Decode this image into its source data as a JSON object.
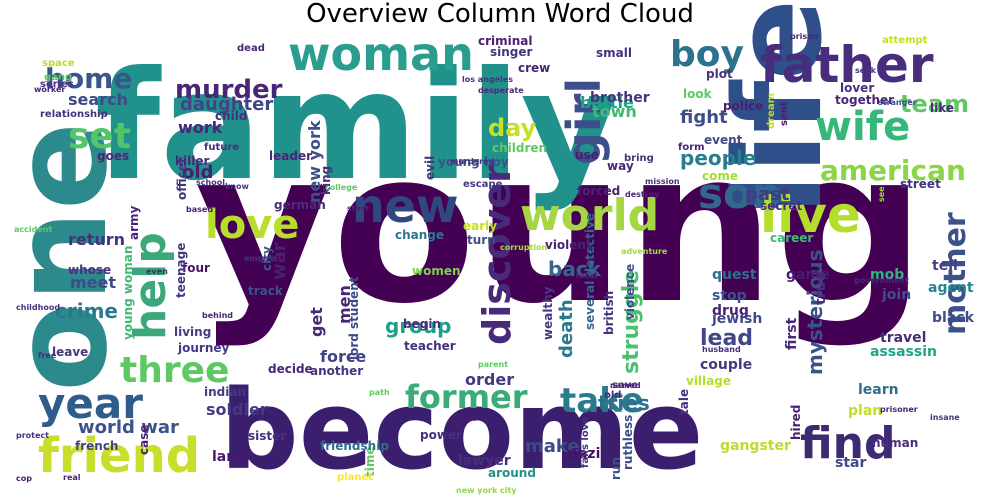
{
  "chart_data": {
    "type": "wordcloud",
    "title": "Overview Column Word Cloud",
    "colormap": "viridis",
    "words": [
      {
        "text": "young",
        "weight": 1.0,
        "color": "#440154"
      },
      {
        "text": "family",
        "weight": 0.92,
        "color": "#21918c"
      },
      {
        "text": "become",
        "weight": 0.62,
        "color": "#3b1f6e"
      },
      {
        "text": "one",
        "weight": 0.5,
        "color": "#2c8a8c"
      },
      {
        "text": "life",
        "weight": 0.45,
        "color": "#2f4f8a"
      },
      {
        "text": "live",
        "weight": 0.3,
        "color": "#b5de2b"
      },
      {
        "text": "father",
        "weight": 0.29,
        "color": "#472d7b"
      },
      {
        "text": "woman",
        "weight": 0.27,
        "color": "#2a9d8f"
      },
      {
        "text": "friend",
        "weight": 0.28,
        "color": "#c9de2b"
      },
      {
        "text": "find",
        "weight": 0.25,
        "color": "#3f2a72"
      },
      {
        "text": "world",
        "weight": 0.24,
        "color": "#a5d743"
      },
      {
        "text": "new",
        "weight": 0.24,
        "color": "#31487f"
      },
      {
        "text": "girl",
        "weight": 0.23,
        "color": "#3c4f8a"
      },
      {
        "text": "wife",
        "weight": 0.22,
        "color": "#35b779"
      },
      {
        "text": "help",
        "weight": 0.22,
        "color": "#3ba87a"
      },
      {
        "text": "love",
        "weight": 0.21,
        "color": "#b8de29"
      },
      {
        "text": "son",
        "weight": 0.19,
        "color": "#31688e"
      },
      {
        "text": "year",
        "weight": 0.19,
        "color": "#2f5c8a"
      },
      {
        "text": "set",
        "weight": 0.18,
        "color": "#52c569"
      },
      {
        "text": "three",
        "weight": 0.17,
        "color": "#5ec962"
      },
      {
        "text": "former",
        "weight": 0.17,
        "color": "#3aab79"
      },
      {
        "text": "take",
        "weight": 0.16,
        "color": "#2b7b8e"
      },
      {
        "text": "discover",
        "weight": 0.15,
        "color": "#472a7a"
      },
      {
        "text": "boy",
        "weight": 0.15,
        "color": "#2c728e"
      },
      {
        "text": "home",
        "weight": 0.12,
        "color": "#3a548c"
      },
      {
        "text": "american",
        "weight": 0.12,
        "color": "#8bd646"
      },
      {
        "text": "mother",
        "weight": 0.12,
        "color": "#3c508b"
      },
      {
        "text": "team",
        "weight": 0.11,
        "color": "#5ec962"
      },
      {
        "text": "murder",
        "weight": 0.11,
        "color": "#482576"
      },
      {
        "text": "day",
        "weight": 0.11,
        "color": "#c7e020"
      },
      {
        "text": "struggle",
        "weight": 0.09,
        "color": "#4ac16d"
      },
      {
        "text": "people",
        "weight": 0.09,
        "color": "#277f8e"
      },
      {
        "text": "fight",
        "weight": 0.08,
        "color": "#3e4c8a"
      },
      {
        "text": "daughter",
        "weight": 0.08,
        "color": "#414487"
      },
      {
        "text": "crime",
        "weight": 0.08,
        "color": "#2a788e"
      },
      {
        "text": "group",
        "weight": 0.08,
        "color": "#1f9e89"
      },
      {
        "text": "lead",
        "weight": 0.08,
        "color": "#404688"
      },
      {
        "text": "past",
        "weight": 0.08,
        "color": "#443983"
      },
      {
        "text": "mysterious",
        "weight": 0.08,
        "color": "#3b528b"
      },
      {
        "text": "tries",
        "weight": 0.08,
        "color": "#2d708e"
      },
      {
        "text": "back",
        "weight": 0.08,
        "color": "#31688e"
      },
      {
        "text": "old",
        "weight": 0.08,
        "color": "#481f70"
      },
      {
        "text": "search",
        "weight": 0.07,
        "color": "#3e4a89"
      },
      {
        "text": "death",
        "weight": 0.07,
        "color": "#2a788e"
      },
      {
        "text": "battle",
        "weight": 0.07,
        "color": "#1fa088"
      },
      {
        "text": "work",
        "weight": 0.07,
        "color": "#482878"
      },
      {
        "text": "world war",
        "weight": 0.07,
        "color": "#3b528b"
      },
      {
        "text": "return",
        "weight": 0.07,
        "color": "#46307e"
      },
      {
        "text": "meet",
        "weight": 0.07,
        "color": "#3e4a89"
      },
      {
        "text": "war",
        "weight": 0.07,
        "color": "#482173"
      },
      {
        "text": "make",
        "weight": 0.06,
        "color": "#3e4989"
      },
      {
        "text": "soldier",
        "weight": 0.06,
        "color": "#443a83"
      },
      {
        "text": "force",
        "weight": 0.06,
        "color": "#404387"
      },
      {
        "text": "order",
        "weight": 0.06,
        "color": "#453781"
      },
      {
        "text": "men",
        "weight": 0.06,
        "color": "#482475"
      },
      {
        "text": "get",
        "weight": 0.06,
        "color": "#472c7a"
      },
      {
        "text": "new york",
        "weight": 0.06,
        "color": "#3b528b"
      },
      {
        "text": "town",
        "weight": 0.06,
        "color": "#3fbc73"
      },
      {
        "text": "brother",
        "weight": 0.05,
        "color": "#46337e"
      },
      {
        "text": "plan",
        "weight": 0.05,
        "color": "#c2df23"
      },
      {
        "text": "learn",
        "weight": 0.05,
        "color": "#2e6f8e"
      },
      {
        "text": "assassin",
        "weight": 0.05,
        "color": "#20a386"
      },
      {
        "text": "travel",
        "weight": 0.05,
        "color": "#472c7a"
      },
      {
        "text": "join",
        "weight": 0.05,
        "color": "#3b528b"
      },
      {
        "text": "couple",
        "weight": 0.05,
        "color": "#443983"
      },
      {
        "text": "mob",
        "weight": 0.05,
        "color": "#2fb47c"
      },
      {
        "text": "quest",
        "weight": 0.05,
        "color": "#2d708e"
      },
      {
        "text": "jewish",
        "weight": 0.05,
        "color": "#3e4989"
      },
      {
        "text": "drug",
        "weight": 0.05,
        "color": "#482576"
      },
      {
        "text": "stop",
        "weight": 0.05,
        "color": "#3b528b"
      },
      {
        "text": "game",
        "weight": 0.05,
        "color": "#481d6f"
      },
      {
        "text": "black",
        "weight": 0.05,
        "color": "#3e4a89"
      },
      {
        "text": "agent",
        "weight": 0.05,
        "color": "#25858e"
      },
      {
        "text": "tell",
        "weight": 0.05,
        "color": "#433e85"
      },
      {
        "text": "true",
        "weight": 0.05,
        "color": "#46337e"
      },
      {
        "text": "first",
        "weight": 0.05,
        "color": "#482878"
      },
      {
        "text": "human",
        "weight": 0.05,
        "color": "#472d7b"
      },
      {
        "text": "gangster",
        "weight": 0.05,
        "color": "#b8de29"
      },
      {
        "text": "star",
        "weight": 0.05,
        "color": "#3e4989"
      },
      {
        "text": "nazi",
        "weight": 0.05,
        "color": "#471063"
      },
      {
        "text": "lawyer",
        "weight": 0.05,
        "color": "#46307e"
      },
      {
        "text": "power",
        "weight": 0.05,
        "color": "#472f7d"
      },
      {
        "text": "around",
        "weight": 0.05,
        "color": "#21918c"
      },
      {
        "text": "sister",
        "weight": 0.05,
        "color": "#46337e"
      },
      {
        "text": "land",
        "weight": 0.05,
        "color": "#481a6c"
      },
      {
        "text": "french",
        "weight": 0.04,
        "color": "#414487"
      },
      {
        "text": "indian",
        "weight": 0.04,
        "color": "#443983"
      },
      {
        "text": "decide",
        "weight": 0.04,
        "color": "#482677"
      },
      {
        "text": "another",
        "weight": 0.04,
        "color": "#46327e"
      },
      {
        "text": "journey",
        "weight": 0.04,
        "color": "#443983"
      },
      {
        "text": "living",
        "weight": 0.04,
        "color": "#433e85"
      },
      {
        "text": "leave",
        "weight": 0.04,
        "color": "#453882"
      },
      {
        "text": "whose",
        "weight": 0.04,
        "color": "#46327e"
      },
      {
        "text": "four",
        "weight": 0.04,
        "color": "#481467"
      },
      {
        "text": "track",
        "weight": 0.04,
        "color": "#3b528b"
      },
      {
        "text": "women",
        "weight": 0.04,
        "color": "#7ad151"
      },
      {
        "text": "begin",
        "weight": 0.04,
        "color": "#472d7b"
      },
      {
        "text": "teacher",
        "weight": 0.04,
        "color": "#46307e"
      },
      {
        "text": "time",
        "weight": 0.04,
        "color": "#5ec962"
      },
      {
        "text": "friendship",
        "weight": 0.04,
        "color": "#2e6e8e"
      },
      {
        "text": "run",
        "weight": 0.04,
        "color": "#3b528b"
      },
      {
        "text": "ruthless",
        "weight": 0.04,
        "color": "#3c4f8a"
      },
      {
        "text": "hired",
        "weight": 0.04,
        "color": "#481f70"
      },
      {
        "text": "village",
        "weight": 0.04,
        "color": "#b5de2b"
      },
      {
        "text": "career",
        "weight": 0.04,
        "color": "#3dbc74"
      },
      {
        "text": "british",
        "weight": 0.04,
        "color": "#46307e"
      },
      {
        "text": "violence",
        "weight": 0.04,
        "color": "#3e4a89"
      },
      {
        "text": "several detective",
        "weight": 0.04,
        "color": "#31688e"
      },
      {
        "text": "wealthy",
        "weight": 0.04,
        "color": "#443983"
      },
      {
        "text": "change",
        "weight": 0.04,
        "color": "#2a788e"
      },
      {
        "text": "violent",
        "weight": 0.04,
        "color": "#482475"
      },
      {
        "text": "turn",
        "weight": 0.04,
        "color": "#3e4a89"
      },
      {
        "text": "early",
        "weight": 0.04,
        "color": "#c2df23"
      },
      {
        "text": "lord student",
        "weight": 0.04,
        "color": "#3e4989"
      },
      {
        "text": "young woman",
        "weight": 0.04,
        "color": "#3fbc73"
      },
      {
        "text": "teenage",
        "weight": 0.04,
        "color": "#46337e"
      },
      {
        "text": "city",
        "weight": 0.04,
        "color": "#38588c"
      },
      {
        "text": "army",
        "weight": 0.04,
        "color": "#482475"
      },
      {
        "text": "german",
        "weight": 0.04,
        "color": "#472d7b"
      },
      {
        "text": "officer",
        "weight": 0.04,
        "color": "#46337e"
      },
      {
        "text": "goes",
        "weight": 0.04,
        "color": "#482677"
      },
      {
        "text": "future",
        "weight": 0.04,
        "color": "#46307e"
      },
      {
        "text": "killer",
        "weight": 0.04,
        "color": "#482878"
      },
      {
        "text": "child",
        "weight": 0.04,
        "color": "#46307e"
      },
      {
        "text": "leader",
        "weight": 0.04,
        "color": "#482677"
      },
      {
        "text": "king",
        "weight": 0.04,
        "color": "#46337e"
      },
      {
        "text": "evil",
        "weight": 0.04,
        "color": "#46327e"
      },
      {
        "text": "young boy",
        "weight": 0.04,
        "color": "#3b528b"
      },
      {
        "text": "children",
        "weight": 0.04,
        "color": "#5ec962"
      },
      {
        "text": "escape",
        "weight": 0.04,
        "color": "#46337e"
      },
      {
        "text": "forced",
        "weight": 0.04,
        "color": "#482475"
      },
      {
        "text": "use",
        "weight": 0.04,
        "color": "#481d6f"
      },
      {
        "text": "way",
        "weight": 0.04,
        "color": "#482878"
      },
      {
        "text": "bring",
        "weight": 0.04,
        "color": "#46327e"
      },
      {
        "text": "form",
        "weight": 0.04,
        "color": "#482677"
      },
      {
        "text": "event",
        "weight": 0.03,
        "color": "#3e4a89"
      },
      {
        "text": "come",
        "weight": 0.03,
        "color": "#a5db36"
      },
      {
        "text": "secret",
        "weight": 0.03,
        "color": "#46307e"
      },
      {
        "text": "street",
        "weight": 0.03,
        "color": "#46337e"
      },
      {
        "text": "like",
        "weight": 0.03,
        "color": "#472d7b"
      },
      {
        "text": "together",
        "weight": 0.03,
        "color": "#482677"
      },
      {
        "text": "lover",
        "weight": 0.03,
        "color": "#46307e"
      },
      {
        "text": "sent",
        "weight": 0.03,
        "color": "#481f70"
      },
      {
        "text": "dream",
        "weight": 0.03,
        "color": "#c2df23"
      },
      {
        "text": "look",
        "weight": 0.03,
        "color": "#5ec962"
      },
      {
        "text": "police",
        "weight": 0.03,
        "color": "#481f70"
      },
      {
        "text": "plot",
        "weight": 0.03,
        "color": "#46327e"
      },
      {
        "text": "small",
        "weight": 0.03,
        "color": "#46307e"
      },
      {
        "text": "crew",
        "weight": 0.03,
        "color": "#482475"
      },
      {
        "text": "singer",
        "weight": 0.03,
        "color": "#46337e"
      },
      {
        "text": "criminal",
        "weight": 0.03,
        "color": "#481f70"
      },
      {
        "text": "dead",
        "weight": 0.03,
        "color": "#482475"
      },
      {
        "text": "space",
        "weight": 0.03,
        "color": "#b5de2b"
      },
      {
        "text": "gang",
        "weight": 0.03,
        "color": "#5ec962"
      },
      {
        "text": "series",
        "weight": 0.03,
        "color": "#46337e"
      },
      {
        "text": "relationship",
        "weight": 0.03,
        "color": "#46307e"
      },
      {
        "text": "attempt",
        "weight": 0.03,
        "color": "#c2df23"
      },
      {
        "text": "save",
        "weight": 0.03,
        "color": "#482475"
      },
      {
        "text": "falls love",
        "weight": 0.03,
        "color": "#46307e"
      },
      {
        "text": "old",
        "weight": 0.03,
        "color": "#482878"
      },
      {
        "text": "tale",
        "weight": 0.03,
        "color": "#46307e"
      },
      {
        "text": "case",
        "weight": 0.03,
        "color": "#481f70"
      },
      {
        "text": "planet",
        "weight": 0.03,
        "color": "#fde725"
      },
      {
        "text": "prison",
        "weight": 0.03,
        "color": "#482475"
      },
      {
        "text": "seek",
        "weight": 0.02,
        "color": "#46327e"
      },
      {
        "text": "stranger",
        "weight": 0.02,
        "color": "#3e4a89"
      },
      {
        "text": "see",
        "weight": 0.02,
        "color": "#a0da39"
      },
      {
        "text": "government",
        "weight": 0.02,
        "color": "#482677"
      },
      {
        "text": "insane",
        "weight": 0.02,
        "color": "#46327e"
      },
      {
        "text": "prisoner",
        "weight": 0.02,
        "color": "#482475"
      },
      {
        "text": "husband",
        "weight": 0.02,
        "color": "#46307e"
      },
      {
        "text": "local",
        "weight": 0.02,
        "color": "#46337e"
      },
      {
        "text": "named",
        "weight": 0.02,
        "color": "#482878"
      },
      {
        "text": "rebel",
        "weight": 0.02,
        "color": "#481f70"
      },
      {
        "text": "new york city",
        "weight": 0.02,
        "color": "#8fd744"
      },
      {
        "text": "real",
        "weight": 0.02,
        "color": "#482475"
      },
      {
        "text": "cop",
        "weight": 0.02,
        "color": "#481f70"
      },
      {
        "text": "protect",
        "weight": 0.02,
        "color": "#46307e"
      },
      {
        "text": "free",
        "weight": 0.02,
        "color": "#472d7b"
      },
      {
        "text": "childhood",
        "weight": 0.02,
        "color": "#46337e"
      },
      {
        "text": "behind",
        "weight": 0.02,
        "color": "#482475"
      },
      {
        "text": "even",
        "weight": 0.02,
        "color": "#482878"
      },
      {
        "text": "empire",
        "weight": 0.02,
        "color": "#46307e"
      },
      {
        "text": "accident",
        "weight": 0.02,
        "color": "#5ec962"
      },
      {
        "text": "based",
        "weight": 0.02,
        "color": "#481f70"
      },
      {
        "text": "school",
        "weight": 0.02,
        "color": "#46327e"
      },
      {
        "text": "know",
        "weight": 0.02,
        "color": "#46337e"
      },
      {
        "text": "path",
        "weight": 0.02,
        "color": "#5ec962"
      },
      {
        "text": "start",
        "weight": 0.02,
        "color": "#482677"
      },
      {
        "text": "adventure",
        "weight": 0.02,
        "color": "#a0da39"
      },
      {
        "text": "destroy",
        "weight": 0.02,
        "color": "#482475"
      },
      {
        "text": "mission",
        "weight": 0.02,
        "color": "#46307e"
      },
      {
        "text": "college",
        "weight": 0.02,
        "color": "#5ec962"
      },
      {
        "text": "desperate",
        "weight": 0.02,
        "color": "#482878"
      },
      {
        "text": "los angeles",
        "weight": 0.02,
        "color": "#46337e"
      },
      {
        "text": "worker",
        "weight": 0.02,
        "color": "#482677"
      },
      {
        "text": "parent",
        "weight": 0.02,
        "color": "#5ec962"
      },
      {
        "text": "murdered",
        "weight": 0.02,
        "color": "#46307e"
      },
      {
        "text": "out",
        "weight": 0.02,
        "color": "#482475"
      },
      {
        "text": "corruption",
        "weight": 0.02,
        "color": "#a0da39"
      }
    ]
  }
}
